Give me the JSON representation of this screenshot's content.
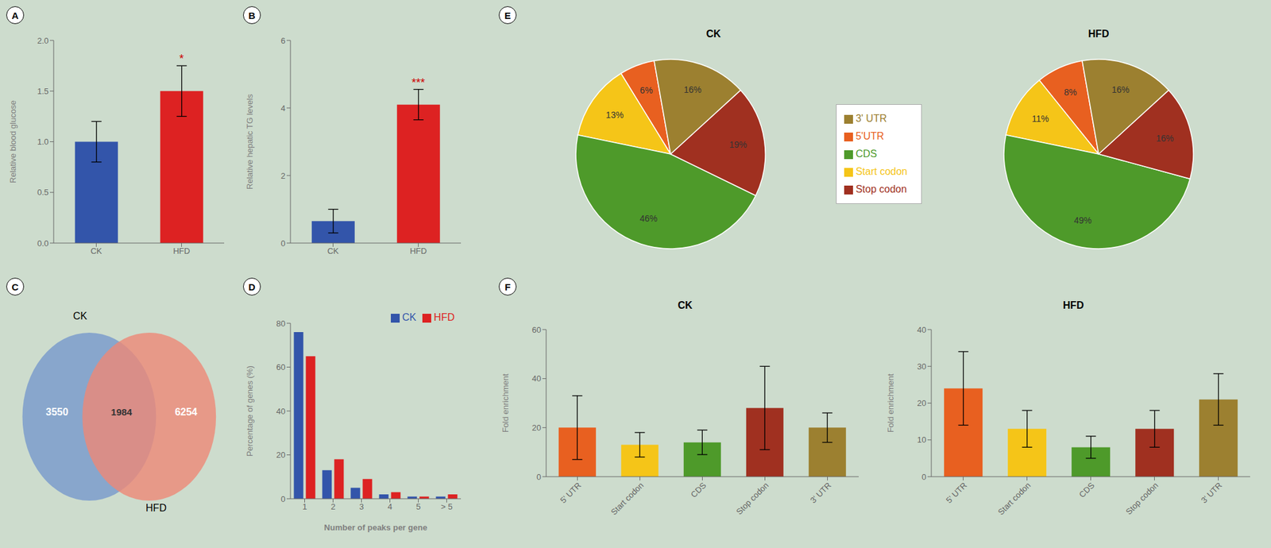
{
  "chart_data": [
    {
      "panel": "A",
      "type": "bar",
      "categories": [
        "CK",
        "HFD"
      ],
      "values": [
        1.0,
        1.5
      ],
      "errors": [
        0.2,
        0.25
      ],
      "colors": [
        "#3355aa",
        "#dd2222"
      ],
      "ylabel": "Relative blood glucose",
      "ylim": [
        0,
        2.0
      ],
      "yticks": [
        {
          "value": 0,
          "label": "0.0"
        },
        0.5,
        {
          "value": 1,
          "label": "1.0"
        },
        1.5,
        {
          "value": 2,
          "label": "2.0"
        }
      ],
      "annotations": [
        {
          "category": "HFD",
          "text": "*",
          "color": "#cc0000"
        }
      ],
      "grid": false
    },
    {
      "panel": "B",
      "type": "bar",
      "categories": [
        "CK",
        "HFD"
      ],
      "values": [
        0.65,
        4.1
      ],
      "errors": [
        0.35,
        0.45
      ],
      "colors": [
        "#3355aa",
        "#dd2222"
      ],
      "ylabel": "Relative hepatic TG levels",
      "ylim": [
        0,
        6
      ],
      "yticks": [
        0,
        2,
        4,
        6
      ],
      "annotations": [
        {
          "category": "HFD",
          "text": "***",
          "color": "#cc0000"
        }
      ],
      "grid": false
    },
    {
      "panel": "C",
      "type": "venn",
      "series": [
        {
          "name": "CK",
          "color": "#7799cc"
        },
        {
          "name": "HFD",
          "color": "#ee8877"
        }
      ],
      "values": [
        3550,
        1984,
        6254
      ]
    },
    {
      "panel": "D",
      "type": "bar",
      "categories": [
        "1",
        "2",
        "3",
        "4",
        "5",
        "> 5"
      ],
      "series": [
        {
          "name": "CK",
          "color": "#3355aa",
          "values": [
            76,
            13,
            5,
            2,
            1,
            1
          ]
        },
        {
          "name": "HFD",
          "color": "#dd2222",
          "values": [
            65,
            18,
            9,
            3,
            1,
            2
          ]
        }
      ],
      "xlabel": "Number of peaks per gene",
      "ylabel": "Percentage of genes (%)",
      "ylim": [
        0,
        80
      ],
      "yticks": [
        0,
        20,
        40,
        60,
        80
      ],
      "legend": "upper right",
      "grid": false
    },
    {
      "panel": "E",
      "type": "pie",
      "title": "CK",
      "categories": [
        "5'UTR",
        "Start codon",
        "CDS",
        "Stop codon",
        "3' UTR"
      ],
      "values": [
        6,
        13,
        46,
        19,
        16
      ],
      "value_labels": [
        "6%",
        "13%",
        "46%",
        "19%",
        "16%"
      ],
      "colors": [
        "#e86020",
        "#f5c518",
        "#4e9a2a",
        "#a03020",
        "#9c8030"
      ],
      "data_labels": true,
      "legend": "right"
    },
    {
      "type": "pie",
      "title": "HFD",
      "categories": [
        "5'UTR",
        "Start codon",
        "CDS",
        "Stop codon",
        "3' UTR"
      ],
      "values": [
        8,
        11,
        49,
        16,
        16
      ],
      "value_labels": [
        "8%",
        "11%",
        "49%",
        "16%",
        "16%"
      ],
      "colors": [
        "#e86020",
        "#f5c518",
        "#4e9a2a",
        "#a03020",
        "#9c8030"
      ],
      "data_labels": true
    },
    {
      "panel": "F",
      "type": "bar",
      "title": "CK",
      "categories": [
        "5' UTR",
        "Start codon",
        "CDS",
        "Stop codon",
        "3' UTR"
      ],
      "values": [
        20,
        13,
        14,
        28,
        20
      ],
      "errors": [
        13,
        5,
        5,
        17,
        6
      ],
      "colors": [
        "#e86020",
        "#f5c518",
        "#4e9a2a",
        "#a03020",
        "#9c8030"
      ],
      "ylabel": "Fold enrichment",
      "ylim": [
        0,
        60
      ],
      "yticks": [
        0,
        20,
        40,
        60
      ],
      "grid": false
    },
    {
      "type": "bar",
      "title": "HFD",
      "categories": [
        "5' UTR",
        "Start codon",
        "CDS",
        "Stop codon",
        "3' UTR"
      ],
      "values": [
        24,
        13,
        8,
        13,
        21
      ],
      "errors": [
        10,
        5,
        3,
        5,
        7
      ],
      "colors": [
        "#e86020",
        "#f5c518",
        "#4e9a2a",
        "#a03020",
        "#9c8030"
      ],
      "ylabel": "Fold enrichment",
      "ylim": [
        0,
        40
      ],
      "yticks": [
        0,
        10,
        20,
        30,
        40
      ],
      "grid": false
    }
  ]
}
